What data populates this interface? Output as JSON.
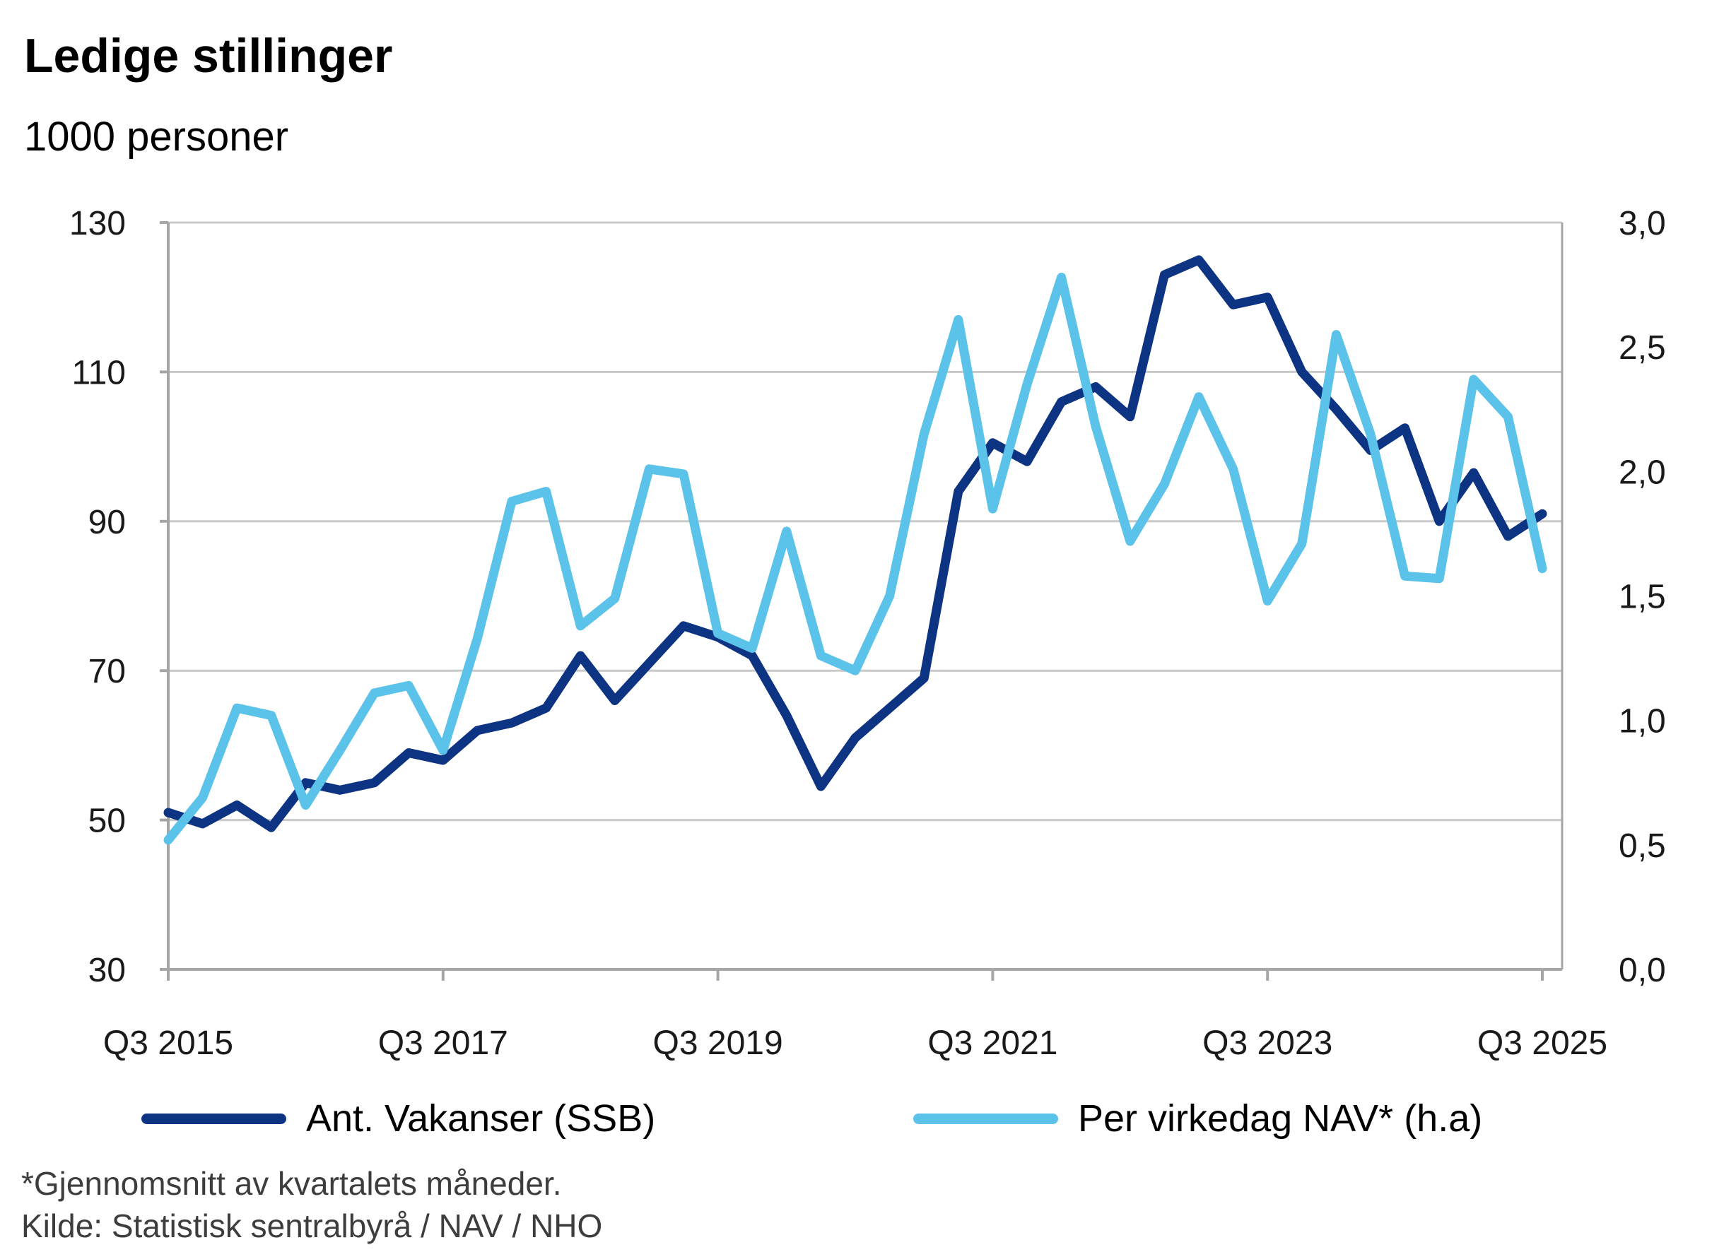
{
  "title": "Ledige stillinger",
  "subtitle": "1000 personer",
  "legend": [
    {
      "label": "Ant. Vakanser (SSB)",
      "color": "#0d3383"
    },
    {
      "label": "Per virkedag NAV* (h.a)",
      "color": "#5bc2e9"
    }
  ],
  "footnotes": {
    "line1": "*Gjennomsnitt av kvartalets måneder.",
    "line2": "Kilde: Statistisk sentralbyrå / NAV / NHO"
  },
  "colors": {
    "ssb_line": "#0d3383",
    "nav_line": "#5bc2e9",
    "gridline": "#c9c9c9",
    "axis": "#a6a6a6",
    "text": "#1a1a1a"
  },
  "chart_data": {
    "type": "line",
    "title": "Ledige stillinger",
    "ylabel_left": "1000 personer",
    "grid": true,
    "legend_position": "bottom",
    "x_axis_tick_labels": [
      "Q3 2015",
      "Q3 2017",
      "Q3 2019",
      "Q3 2021",
      "Q3 2023",
      "Q3 2025"
    ],
    "left_axis": {
      "ticks": [
        130,
        110,
        90,
        70,
        50,
        30
      ],
      "min": 30,
      "max": 130
    },
    "right_axis": {
      "ticks": [
        "3,0",
        "2,5",
        "2,0",
        "1,5",
        "1,0",
        "0,5",
        "0,0"
      ],
      "min": 0.0,
      "max": 3.0
    },
    "categories": [
      "Q3 2015",
      "Q4 2015",
      "Q1 2016",
      "Q2 2016",
      "Q3 2016",
      "Q4 2016",
      "Q1 2017",
      "Q2 2017",
      "Q3 2017",
      "Q4 2017",
      "Q1 2018",
      "Q2 2018",
      "Q3 2018",
      "Q4 2018",
      "Q1 2019",
      "Q2 2019",
      "Q3 2019",
      "Q4 2019",
      "Q1 2020",
      "Q2 2020",
      "Q3 2020",
      "Q4 2020",
      "Q1 2021",
      "Q2 2021",
      "Q3 2021",
      "Q4 2021",
      "Q1 2022",
      "Q2 2022",
      "Q3 2022",
      "Q4 2022",
      "Q1 2023",
      "Q2 2023",
      "Q3 2023",
      "Q4 2023",
      "Q1 2024",
      "Q2 2024",
      "Q3 2024",
      "Q4 2024",
      "Q1 2025",
      "Q2 2025",
      "Q3 2025"
    ],
    "series": [
      {
        "name": "Ant. Vakanser (SSB)",
        "axis": "left",
        "color": "#0d3383",
        "values": [
          51,
          49.5,
          52,
          49,
          55,
          54,
          55,
          59,
          58,
          62,
          63,
          65,
          72,
          66,
          71,
          76,
          74.5,
          72,
          64,
          54.5,
          61,
          65,
          69,
          94,
          100.5,
          98,
          106,
          108,
          104,
          123,
          125,
          119,
          120,
          110,
          105,
          99.5,
          102.5,
          90,
          96.5,
          88,
          91
        ]
      },
      {
        "name": "Per virkedag NAV* (h.a)",
        "axis": "right",
        "color": "#5bc2e9",
        "values": [
          0.52,
          0.69,
          1.05,
          1.02,
          0.66,
          0.88,
          1.11,
          1.14,
          0.88,
          1.33,
          1.88,
          1.92,
          1.38,
          1.49,
          2.01,
          1.99,
          1.35,
          1.29,
          1.76,
          1.26,
          1.2,
          1.5,
          2.15,
          2.61,
          1.85,
          2.35,
          2.78,
          2.18,
          1.72,
          1.95,
          2.3,
          2.01,
          1.48,
          1.71,
          2.55,
          2.15,
          1.58,
          1.57,
          2.37,
          2.22,
          1.61
        ]
      }
    ]
  }
}
